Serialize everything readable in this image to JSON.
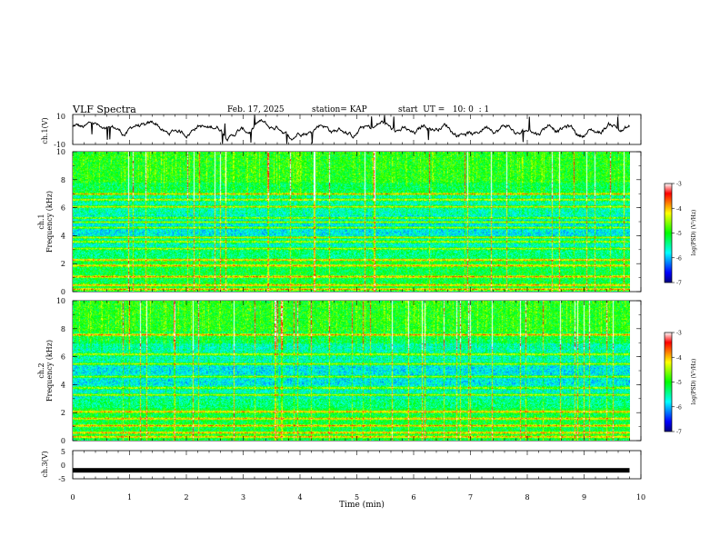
{
  "header": {
    "title": "VLF Spectra",
    "date": "Feb. 17, 2025",
    "station": "station= KAP",
    "start": "start  UT =   10: 0  : 1"
  },
  "chart_data": [
    {
      "type": "line",
      "panel": "ch1-waveform",
      "ylabel": "ch.1(V)",
      "ylim": [
        -10,
        10
      ],
      "yticks": [
        "10",
        "-10"
      ],
      "xlim": [
        0,
        10
      ],
      "series_summary": "waveform roughly -6 to 6 V, mean near 0 V"
    },
    {
      "type": "heatmap",
      "panel": "ch1-spectrogram",
      "ylabel": "ch.1\nFrequency (kHz)",
      "ylabel_l1": "ch.1",
      "ylabel_l2": "Frequency (kHz)",
      "ylim": [
        0,
        10
      ],
      "yticks": [
        "0",
        "2",
        "4",
        "6",
        "8",
        "10"
      ],
      "xlim": [
        0,
        9.8
      ],
      "bands_khz": [
        0.2,
        0.5,
        1.1,
        1.9,
        2.3,
        3.1,
        3.6,
        3.9,
        4.6,
        5.0,
        5.3,
        6.1,
        6.6,
        7.0
      ],
      "colorbar": {
        "label": "log(PSD) (V²/Hz)",
        "ticks": [
          "-3",
          "-4",
          "-5",
          "-6",
          "-7"
        ],
        "range": [
          -7,
          -3
        ]
      }
    },
    {
      "type": "heatmap",
      "panel": "ch2-spectrogram",
      "ylabel": "ch.2\nFrequency (kHz)",
      "ylabel_l1": "ch.2",
      "ylabel_l2": "Frequency (kHz)",
      "ylim": [
        0,
        10
      ],
      "yticks": [
        "0",
        "2",
        "4",
        "6",
        "8",
        "10"
      ],
      "xlim": [
        0,
        9.8
      ],
      "bands_khz": [
        0.3,
        0.6,
        1.1,
        1.6,
        2.1,
        3.3,
        3.8,
        4.6,
        5.5,
        6.2,
        7.6
      ],
      "colorbar": {
        "label": "log(PSD) (V²/Hz)",
        "ticks": [
          "-3",
          "-4",
          "-5",
          "-6",
          "-7"
        ],
        "range": [
          -7,
          -3
        ]
      }
    },
    {
      "type": "line",
      "panel": "ch3-waveform",
      "ylabel": "ch.3(V)",
      "ylim": [
        -5,
        5
      ],
      "yticks": [
        "5",
        "0",
        "-5"
      ],
      "xlim": [
        0,
        9.8
      ],
      "series_summary": "flat thick trace near -2 V"
    }
  ],
  "xaxis": {
    "label": "Time  (min)",
    "ticks": [
      "0",
      "1",
      "2",
      "3",
      "4",
      "5",
      "6",
      "7",
      "8",
      "9",
      "10"
    ],
    "range": [
      0,
      10
    ]
  },
  "colors": {
    "cb_stops": [
      "#000080",
      "#0000ff",
      "#0080ff",
      "#00ffff",
      "#00ff80",
      "#00ff00",
      "#80ff00",
      "#ffff00",
      "#ff8000",
      "#ff0000",
      "#ffffff"
    ]
  }
}
